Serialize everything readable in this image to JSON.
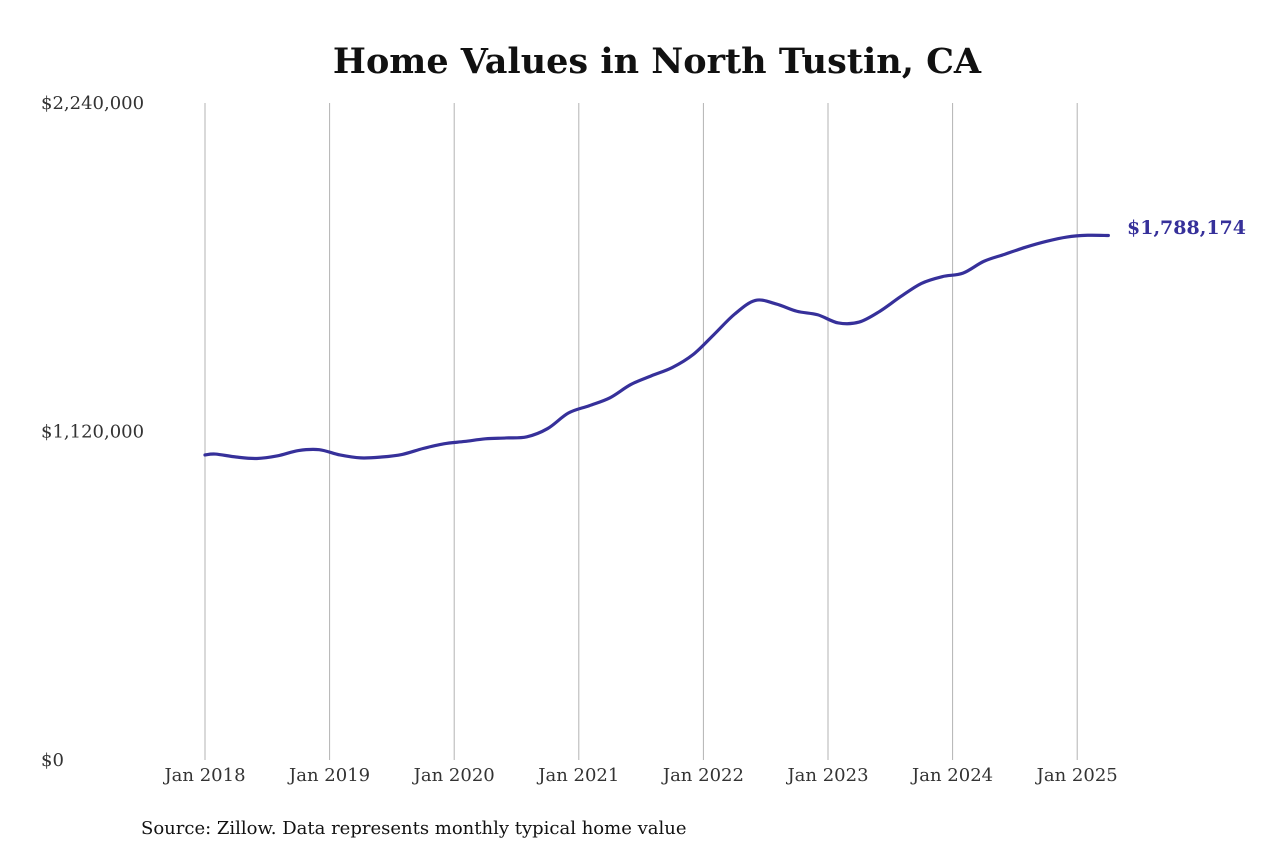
{
  "chart_data": {
    "type": "line",
    "title": "Home Values in North Tustin, CA",
    "xlabel": "",
    "ylabel": "",
    "ylim": [
      0,
      2240000
    ],
    "y_ticks": [
      0,
      1120000,
      2240000
    ],
    "y_tick_labels": [
      "$0",
      "$1,120,000",
      "$2,240,000"
    ],
    "x_ticks": [
      2018,
      2019,
      2020,
      2021,
      2022,
      2023,
      2024,
      2025
    ],
    "x_tick_labels": [
      "Jan 2018",
      "Jan 2019",
      "Jan 2020",
      "Jan 2021",
      "Jan 2022",
      "Jan 2023",
      "Jan 2024",
      "Jan 2025"
    ],
    "grid": "vertical",
    "series": [
      {
        "color": "#36309a",
        "points": [
          [
            "2018-01",
            1040000
          ],
          [
            "2018-02",
            1043000
          ],
          [
            "2018-04",
            1033000
          ],
          [
            "2018-06",
            1028000
          ],
          [
            "2018-08",
            1037000
          ],
          [
            "2018-10",
            1055000
          ],
          [
            "2018-12",
            1058000
          ],
          [
            "2019-02",
            1040000
          ],
          [
            "2019-04",
            1030000
          ],
          [
            "2019-06",
            1033000
          ],
          [
            "2019-08",
            1042000
          ],
          [
            "2019-10",
            1062000
          ],
          [
            "2019-12",
            1078000
          ],
          [
            "2020-02",
            1086000
          ],
          [
            "2020-04",
            1095000
          ],
          [
            "2020-06",
            1098000
          ],
          [
            "2020-08",
            1102000
          ],
          [
            "2020-10",
            1130000
          ],
          [
            "2020-12",
            1183000
          ],
          [
            "2021-02",
            1208000
          ],
          [
            "2021-04",
            1235000
          ],
          [
            "2021-06",
            1280000
          ],
          [
            "2021-08",
            1310000
          ],
          [
            "2021-10",
            1338000
          ],
          [
            "2021-12",
            1382000
          ],
          [
            "2022-02",
            1450000
          ],
          [
            "2022-04",
            1520000
          ],
          [
            "2022-06",
            1567000
          ],
          [
            "2022-08",
            1555000
          ],
          [
            "2022-10",
            1530000
          ],
          [
            "2022-12",
            1518000
          ],
          [
            "2023-02",
            1490000
          ],
          [
            "2023-04",
            1493000
          ],
          [
            "2023-06",
            1530000
          ],
          [
            "2023-08",
            1580000
          ],
          [
            "2023-10",
            1625000
          ],
          [
            "2023-12",
            1648000
          ],
          [
            "2024-02",
            1660000
          ],
          [
            "2024-04",
            1700000
          ],
          [
            "2024-06",
            1724000
          ],
          [
            "2024-08",
            1748000
          ],
          [
            "2024-10",
            1768000
          ],
          [
            "2024-12",
            1783000
          ],
          [
            "2025-02",
            1789000
          ],
          [
            "2025-04",
            1788174
          ]
        ]
      }
    ],
    "end_label": "$1,788,174"
  },
  "source_note": "Source: Zillow. Data represents monthly typical home value"
}
